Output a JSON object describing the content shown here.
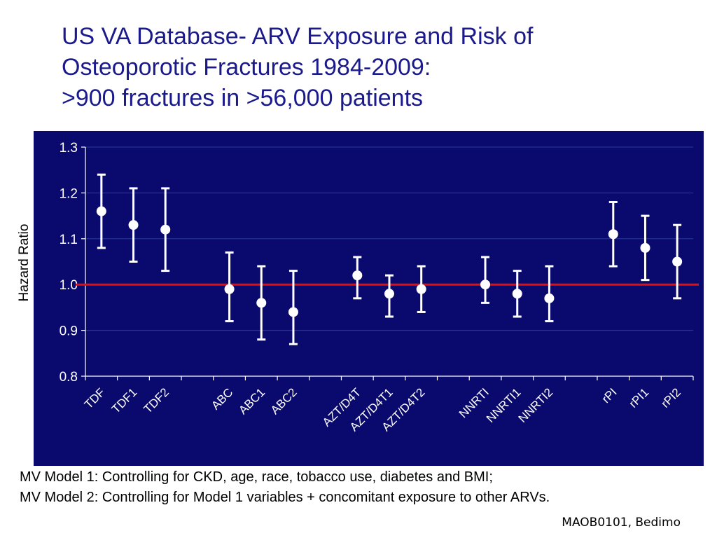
{
  "title": {
    "line1": "US VA Database- ARV Exposure and Risk of",
    "line2": "Osteoporotic Fractures 1984-2009:",
    "line3": ">900 fractures in >56,000 patients"
  },
  "chart_data": {
    "type": "scatter",
    "subtype": "error-bar",
    "ylabel": "Hazard Ratio",
    "xlabel": "",
    "ylim": [
      0.8,
      1.3
    ],
    "yticks": [
      "0.8",
      "0.9",
      "1.0",
      "1.1",
      "1.2",
      "1.3"
    ],
    "reference_line": 1.0,
    "grid": true,
    "colors": {
      "background": "#0a0a6e",
      "marker": "#ffffff",
      "reference_line": "#dd1111",
      "grid": "#2a3a9a"
    },
    "groups": [
      {
        "points": [
          {
            "label": "TDF",
            "value": 1.16,
            "low": 1.08,
            "high": 1.24
          },
          {
            "label": "TDF1",
            "value": 1.13,
            "low": 1.05,
            "high": 1.21
          },
          {
            "label": "TDF2",
            "value": 1.12,
            "low": 1.03,
            "high": 1.21
          }
        ]
      },
      {
        "points": [
          {
            "label": "ABC",
            "value": 0.99,
            "low": 0.92,
            "high": 1.07
          },
          {
            "label": "ABC1",
            "value": 0.96,
            "low": 0.88,
            "high": 1.04
          },
          {
            "label": "ABC2",
            "value": 0.94,
            "low": 0.87,
            "high": 1.03
          }
        ]
      },
      {
        "points": [
          {
            "label": "AZT/D4T",
            "value": 1.02,
            "low": 0.97,
            "high": 1.06
          },
          {
            "label": "AZT/D4T1",
            "value": 0.98,
            "low": 0.93,
            "high": 1.02
          },
          {
            "label": "AZT/D4T2",
            "value": 0.99,
            "low": 0.94,
            "high": 1.04
          }
        ]
      },
      {
        "points": [
          {
            "label": "NNRTI",
            "value": 1.0,
            "low": 0.96,
            "high": 1.06
          },
          {
            "label": "NNRTI1",
            "value": 0.98,
            "low": 0.93,
            "high": 1.03
          },
          {
            "label": "NNRTI2",
            "value": 0.97,
            "low": 0.92,
            "high": 1.04
          }
        ]
      },
      {
        "points": [
          {
            "label": "rPI",
            "value": 1.11,
            "low": 1.04,
            "high": 1.18
          },
          {
            "label": "rPI1",
            "value": 1.08,
            "low": 1.01,
            "high": 1.15
          },
          {
            "label": "rPI2",
            "value": 1.05,
            "low": 0.97,
            "high": 1.13
          }
        ]
      }
    ]
  },
  "notes": {
    "line1": "MV Model 1: Controlling for CKD, age, race, tobacco use, diabetes and BMI;",
    "line2": "MV Model 2: Controlling for Model 1 variables + concomitant exposure to other ARVs."
  },
  "credit": "MAOB0101, Bedimo"
}
